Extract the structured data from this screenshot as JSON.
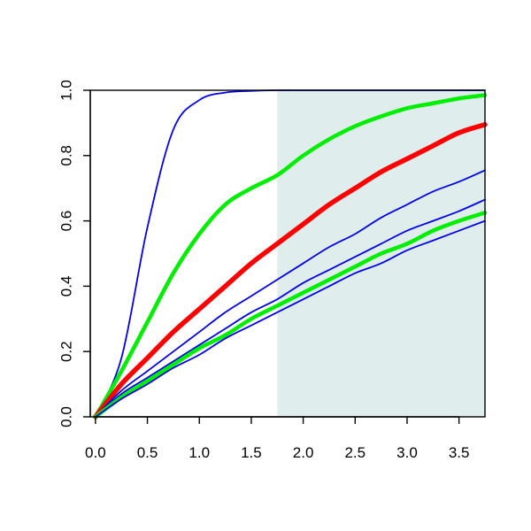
{
  "chart_data": {
    "type": "line",
    "title": "",
    "xlabel": "",
    "ylabel": "",
    "xlim": [
      -0.05,
      3.75
    ],
    "ylim": [
      0.0,
      1.0
    ],
    "x_ticks": [
      0.0,
      0.5,
      1.0,
      1.5,
      2.0,
      2.5,
      3.0,
      3.5
    ],
    "x_tick_labels": [
      "0.0",
      "0.5",
      "1.0",
      "1.5",
      "2.0",
      "2.5",
      "3.0",
      "3.5"
    ],
    "y_ticks": [
      0.0,
      0.2,
      0.4,
      0.6,
      0.8,
      1.0
    ],
    "y_tick_labels": [
      "0.0",
      "0.2",
      "0.4",
      "0.6",
      "0.8",
      "1.0"
    ],
    "grid": false,
    "legend": "none",
    "shaded_region": {
      "x_from": 1.75,
      "x_to": 3.75,
      "color": "#e0eded"
    },
    "x": [
      0.0,
      0.25,
      0.5,
      0.75,
      1.0,
      1.25,
      1.5,
      1.75,
      2.0,
      2.25,
      2.5,
      2.75,
      3.0,
      3.25,
      3.5,
      3.75
    ],
    "series": [
      {
        "color": "#0000ee",
        "width": 1.8,
        "values": [
          0.0,
          0.18,
          0.58,
          0.88,
          0.97,
          0.993,
          0.998,
          1.0,
          1.0,
          1.0,
          1.0,
          1.0,
          1.0,
          1.0,
          1.0,
          1.0
        ]
      },
      {
        "color": "#00ee00",
        "width": 4.5,
        "values": [
          0.0,
          0.14,
          0.29,
          0.44,
          0.56,
          0.65,
          0.7,
          0.74,
          0.8,
          0.85,
          0.89,
          0.92,
          0.945,
          0.96,
          0.975,
          0.985
        ]
      },
      {
        "color": "#ff0000",
        "width": 5.5,
        "values": [
          0.0,
          0.1,
          0.18,
          0.26,
          0.33,
          0.4,
          0.47,
          0.53,
          0.59,
          0.65,
          0.7,
          0.75,
          0.79,
          0.83,
          0.87,
          0.895
        ]
      },
      {
        "color": "#0000ee",
        "width": 1.8,
        "values": [
          0.0,
          0.08,
          0.14,
          0.2,
          0.26,
          0.32,
          0.37,
          0.42,
          0.47,
          0.52,
          0.56,
          0.61,
          0.65,
          0.69,
          0.72,
          0.755
        ]
      },
      {
        "color": "#0000ee",
        "width": 1.8,
        "values": [
          0.0,
          0.07,
          0.12,
          0.17,
          0.22,
          0.27,
          0.32,
          0.36,
          0.41,
          0.45,
          0.49,
          0.53,
          0.57,
          0.6,
          0.63,
          0.665
        ]
      },
      {
        "color": "#00ee00",
        "width": 4.5,
        "values": [
          0.0,
          0.06,
          0.11,
          0.16,
          0.21,
          0.25,
          0.3,
          0.34,
          0.38,
          0.42,
          0.46,
          0.5,
          0.53,
          0.57,
          0.6,
          0.625
        ]
      },
      {
        "color": "#0000ee",
        "width": 1.8,
        "values": [
          0.0,
          0.055,
          0.1,
          0.15,
          0.19,
          0.24,
          0.28,
          0.32,
          0.36,
          0.4,
          0.44,
          0.47,
          0.51,
          0.54,
          0.57,
          0.6
        ]
      }
    ]
  }
}
